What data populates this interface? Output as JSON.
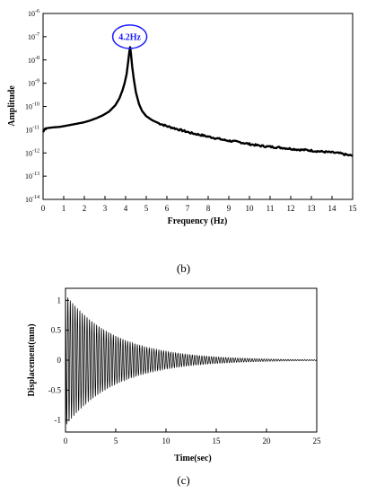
{
  "captions": {
    "b": "(b)",
    "c": "(c)"
  },
  "chart_data": [
    {
      "type": "line",
      "xlabel": "Frequency (Hz)",
      "ylabel": "Amplitude",
      "xlim": [
        0,
        15
      ],
      "ylim": [
        -14,
        -6
      ],
      "y_scale": "log",
      "grid": false,
      "x_ticks": [
        "0",
        "1",
        "2",
        "3",
        "4",
        "5",
        "6",
        "7",
        "8",
        "9",
        "10",
        "11",
        "12",
        "13",
        "14",
        "15"
      ],
      "y_ticks": [
        "10-14",
        "10-13",
        "10-12",
        "10-11",
        "10-10",
        "10-9",
        "10-8",
        "10-7",
        "10-6"
      ],
      "annotation": {
        "text": "4.2Hz",
        "x": 4.2,
        "y": -7,
        "color": "#1a1aff"
      },
      "series": [
        {
          "color": "#000000",
          "x": [
            0.0,
            0.1,
            0.3,
            0.5,
            0.8,
            1.0,
            1.3,
            1.6,
            2.0,
            2.3,
            2.6,
            2.9,
            3.2,
            3.5,
            3.7,
            3.85,
            3.95,
            4.05,
            4.12,
            4.18,
            4.22,
            4.26,
            4.32,
            4.4,
            4.5,
            4.65,
            4.8,
            5.0,
            5.3,
            5.6,
            6.0,
            6.4,
            6.8,
            7.2,
            7.6,
            8.0,
            8.4,
            8.8,
            9.2,
            9.6,
            10.0,
            10.4,
            10.8,
            11.2,
            11.6,
            12.0,
            12.4,
            12.8,
            13.2,
            13.6,
            14.0,
            14.4,
            14.8,
            15.0
          ],
          "y": [
            -11.1,
            -10.95,
            -10.92,
            -10.9,
            -10.88,
            -10.85,
            -10.8,
            -10.75,
            -10.68,
            -10.6,
            -10.5,
            -10.38,
            -10.22,
            -9.95,
            -9.65,
            -9.3,
            -9.0,
            -8.6,
            -8.1,
            -7.65,
            -7.45,
            -7.75,
            -8.3,
            -8.85,
            -9.4,
            -9.9,
            -10.2,
            -10.42,
            -10.6,
            -10.72,
            -10.85,
            -10.95,
            -11.05,
            -11.15,
            -11.22,
            -11.3,
            -11.37,
            -11.45,
            -11.5,
            -11.55,
            -11.62,
            -11.68,
            -11.72,
            -11.75,
            -11.78,
            -11.82,
            -11.86,
            -11.88,
            -11.92,
            -11.95,
            -11.98,
            -12.02,
            -12.1,
            -12.12
          ]
        }
      ]
    },
    {
      "type": "line",
      "xlabel": "Time(sec)",
      "ylabel": "Displacement(mm)",
      "xlim": [
        0,
        25
      ],
      "ylim": [
        -1.2,
        1.2
      ],
      "grid": false,
      "x_ticks": [
        "0",
        "5",
        "10",
        "15",
        "20",
        "25"
      ],
      "y_ticks": [
        "1",
        "0.5",
        "0",
        "-0.5",
        "-1"
      ],
      "signal": {
        "frequency_hz": 4.2,
        "envelope_start_mm": 1.1,
        "envelope_decay_per_s": 0.2,
        "x_start": 0.0,
        "x_end": 25.0
      }
    }
  ]
}
